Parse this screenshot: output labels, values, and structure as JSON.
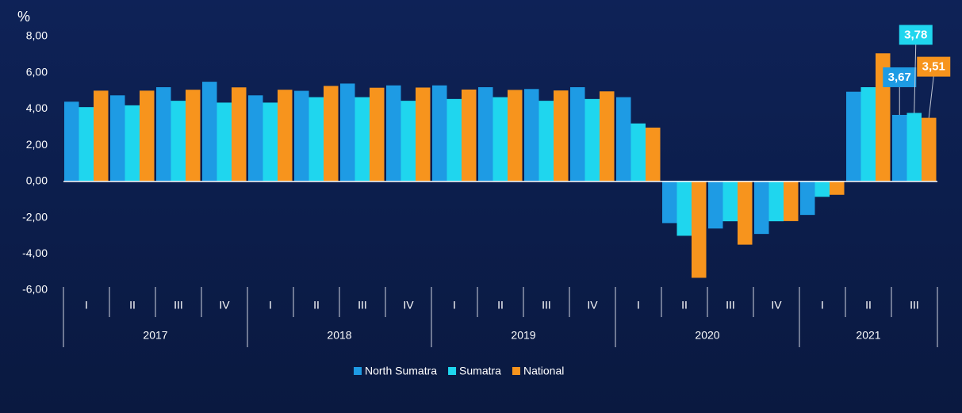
{
  "chart_data": {
    "type": "bar",
    "y_label": "%",
    "groups": [
      {
        "label": "2017",
        "categories": [
          "I",
          "II",
          "III",
          "IV"
        ]
      },
      {
        "label": "2018",
        "categories": [
          "I",
          "II",
          "III",
          "IV"
        ]
      },
      {
        "label": "2019",
        "categories": [
          "I",
          "II",
          "III",
          "IV"
        ]
      },
      {
        "label": "2020",
        "categories": [
          "I",
          "II",
          "III",
          "IV"
        ]
      },
      {
        "label": "2021",
        "categories": [
          "I",
          "II",
          "III"
        ]
      }
    ],
    "series": [
      {
        "name": "North Sumatra",
        "color": "#1e9be4",
        "values": [
          4.4,
          4.75,
          5.2,
          5.5,
          4.75,
          5.0,
          5.4,
          5.3,
          5.3,
          5.2,
          5.1,
          5.2,
          4.65,
          -2.3,
          -2.6,
          -2.9,
          -1.85,
          4.95,
          3.67
        ],
        "value_labels": [
          null,
          null,
          null,
          null,
          null,
          null,
          null,
          null,
          null,
          null,
          null,
          null,
          null,
          null,
          null,
          null,
          null,
          null,
          "3,67"
        ]
      },
      {
        "name": "Sumatra",
        "color": "#1fd6ee",
        "values": [
          4.1,
          4.2,
          4.45,
          4.35,
          4.35,
          4.65,
          4.65,
          4.45,
          4.55,
          4.65,
          4.45,
          4.55,
          3.2,
          -3.0,
          -2.2,
          -2.2,
          -0.85,
          5.2,
          3.78
        ],
        "value_labels": [
          null,
          null,
          null,
          null,
          null,
          null,
          null,
          null,
          null,
          null,
          null,
          null,
          null,
          null,
          null,
          null,
          null,
          null,
          "3,78"
        ]
      },
      {
        "name": "National",
        "color": "#f7941d",
        "values": [
          5.01,
          5.01,
          5.06,
          5.19,
          5.06,
          5.27,
          5.17,
          5.18,
          5.07,
          5.05,
          5.02,
          4.97,
          2.97,
          -5.32,
          -3.49,
          -2.19,
          -0.74,
          7.07,
          3.51
        ],
        "value_labels": [
          null,
          null,
          null,
          null,
          null,
          null,
          null,
          null,
          null,
          null,
          null,
          null,
          null,
          null,
          null,
          null,
          null,
          null,
          "3,51"
        ]
      }
    ],
    "ylim": [
      -6,
      8
    ],
    "yticks": [
      {
        "value": -6,
        "label": "-6,00"
      },
      {
        "value": -4,
        "label": "-4,00"
      },
      {
        "value": -2,
        "label": "-2,00"
      },
      {
        "value": 0,
        "label": "0,00"
      },
      {
        "value": 2,
        "label": "2,00"
      },
      {
        "value": 4,
        "label": "4,00"
      },
      {
        "value": 6,
        "label": "6,00"
      },
      {
        "value": 8,
        "label": "8,00"
      }
    ]
  }
}
